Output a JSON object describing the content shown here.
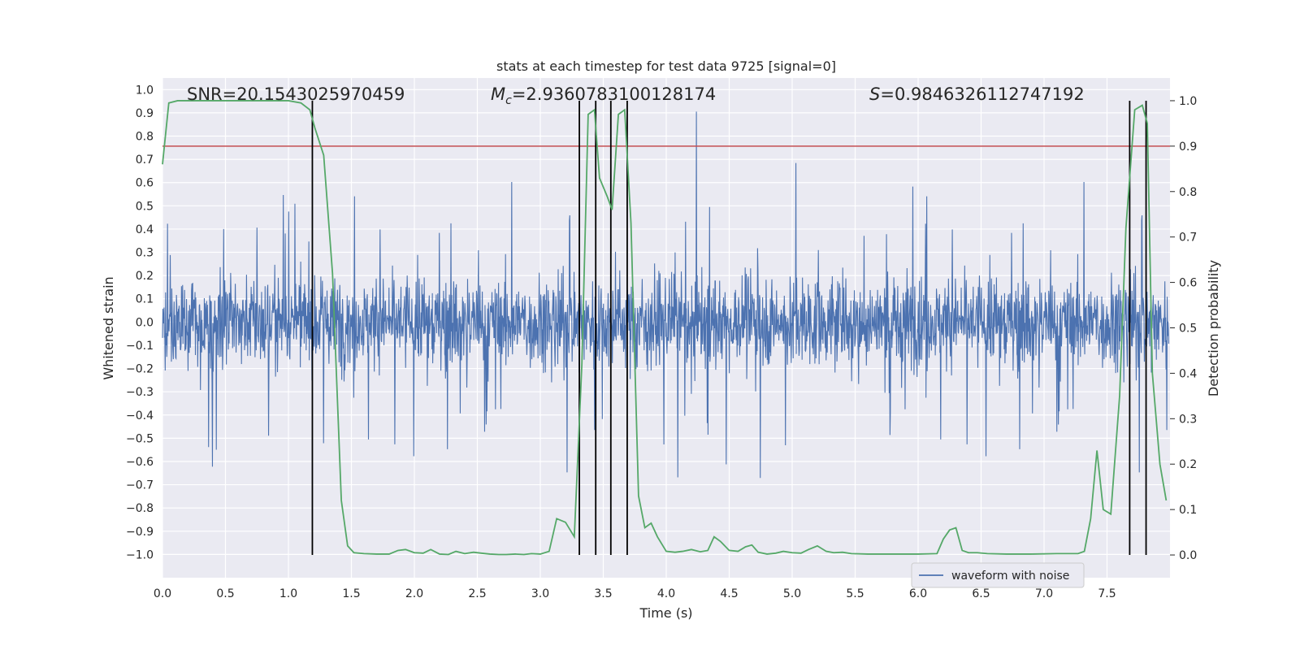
{
  "chart_data": {
    "type": "line",
    "title": "stats at each timestep for test data 9725 [signal=0]",
    "xlabel": "Time (s)",
    "ylabel": "Whitened strain",
    "ylabel_right": "Detection probability",
    "xlim": [
      0.0,
      8.0
    ],
    "ylim": [
      -1.1,
      1.05
    ],
    "ylim_right": [
      -0.05,
      1.05
    ],
    "x_ticks": [
      "0.0",
      "0.5",
      "1.0",
      "1.5",
      "2.0",
      "2.5",
      "3.0",
      "3.5",
      "4.0",
      "4.5",
      "5.0",
      "5.5",
      "6.0",
      "6.5",
      "7.0",
      "7.5"
    ],
    "y_ticks": [
      "1.0",
      "0.9",
      "0.8",
      "0.7",
      "0.6",
      "0.5",
      "0.4",
      "0.3",
      "0.2",
      "0.1",
      "0.0",
      "−0.1",
      "−0.2",
      "−0.3",
      "−0.4",
      "−0.5",
      "−0.6",
      "−0.7",
      "−0.8",
      "−0.9",
      "−1.0"
    ],
    "y_ticks_right": [
      "1.0",
      "0.9",
      "0.8",
      "0.7",
      "0.6",
      "0.5",
      "0.4",
      "0.3",
      "0.2",
      "0.1",
      "0.0"
    ],
    "annotations": {
      "snr": "SNR=20.1543025970459",
      "mc_symbol": "M",
      "mc_sub": "c",
      "mc_value": "=2.9360783100128174",
      "s_symbol": "S",
      "s_value": "=0.9846326112747192"
    },
    "grid": true,
    "legend": {
      "position": "lower-right",
      "entries": [
        {
          "label": "waveform with noise",
          "color": "#4c72b0"
        }
      ]
    },
    "series": [
      {
        "name": "waveform with noise",
        "axis": "left",
        "color": "#4c72b0",
        "kind": "noise",
        "envelope": {
          "typical_max": 0.45,
          "typical_min": -0.45,
          "peak_max": 0.95,
          "peak_min": -1.0
        }
      },
      {
        "axis": "right",
        "color": "#55a868",
        "x": [
          0.0,
          0.05,
          0.12,
          0.2,
          0.4,
          0.6,
          0.8,
          1.0,
          1.1,
          1.17,
          1.21,
          1.28,
          1.35,
          1.42,
          1.47,
          1.52,
          1.6,
          1.7,
          1.8,
          1.87,
          1.93,
          2.0,
          2.07,
          2.13,
          2.2,
          2.27,
          2.33,
          2.4,
          2.47,
          2.53,
          2.6,
          2.67,
          2.73,
          2.8,
          2.87,
          2.93,
          3.0,
          3.07,
          3.13,
          3.2,
          3.27,
          3.33,
          3.38,
          3.43,
          3.47,
          3.53,
          3.57,
          3.62,
          3.67,
          3.72,
          3.78,
          3.83,
          3.88,
          3.93,
          4.0,
          4.07,
          4.13,
          4.2,
          4.27,
          4.33,
          4.38,
          4.43,
          4.5,
          4.57,
          4.63,
          4.68,
          4.73,
          4.8,
          4.87,
          4.93,
          5.0,
          5.07,
          5.13,
          5.2,
          5.27,
          5.33,
          5.4,
          5.47,
          5.6,
          5.8,
          6.0,
          6.15,
          6.2,
          6.25,
          6.3,
          6.35,
          6.4,
          6.47,
          6.55,
          6.7,
          6.9,
          7.1,
          7.2,
          7.27,
          7.32,
          7.37,
          7.42,
          7.47,
          7.53,
          7.6,
          7.65,
          7.72,
          7.78,
          7.82,
          7.86,
          7.92,
          7.97
        ],
        "y": [
          0.86,
          0.995,
          1.0,
          1.0,
          1.0,
          1.0,
          1.0,
          1.0,
          0.995,
          0.98,
          0.94,
          0.88,
          0.62,
          0.12,
          0.02,
          0.005,
          0.003,
          0.002,
          0.002,
          0.01,
          0.012,
          0.005,
          0.004,
          0.012,
          0.002,
          0.001,
          0.008,
          0.003,
          0.006,
          0.004,
          0.002,
          0.001,
          0.001,
          0.002,
          0.001,
          0.003,
          0.002,
          0.008,
          0.08,
          0.072,
          0.04,
          0.42,
          0.97,
          0.98,
          0.83,
          0.79,
          0.76,
          0.97,
          0.98,
          0.73,
          0.13,
          0.06,
          0.07,
          0.04,
          0.008,
          0.006,
          0.008,
          0.012,
          0.007,
          0.01,
          0.04,
          0.03,
          0.01,
          0.008,
          0.018,
          0.022,
          0.006,
          0.002,
          0.004,
          0.008,
          0.005,
          0.004,
          0.012,
          0.02,
          0.008,
          0.005,
          0.006,
          0.003,
          0.002,
          0.002,
          0.002,
          0.003,
          0.035,
          0.055,
          0.06,
          0.01,
          0.005,
          0.005,
          0.003,
          0.002,
          0.002,
          0.003,
          0.003,
          0.003,
          0.008,
          0.08,
          0.23,
          0.1,
          0.09,
          0.35,
          0.72,
          0.98,
          0.99,
          0.95,
          0.4,
          0.2,
          0.12
        ]
      }
    ],
    "threshold_line": {
      "y_right": 0.9,
      "color": "#c44e52"
    },
    "vertical_lines": {
      "color": "#000000",
      "x": [
        1.19,
        3.31,
        3.44,
        3.56,
        3.69,
        7.68,
        7.81
      ],
      "y_right_range": [
        0.0,
        1.0
      ]
    }
  }
}
